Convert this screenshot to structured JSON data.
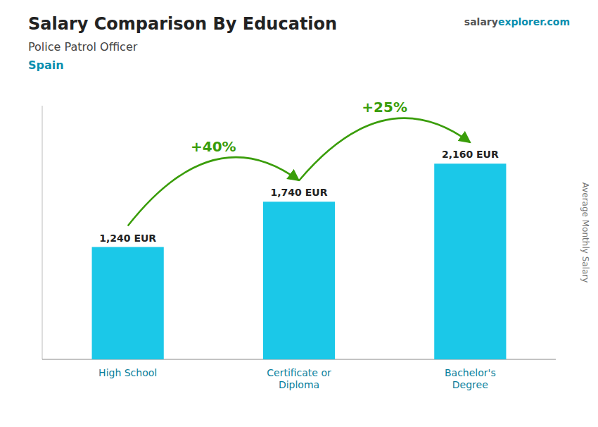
{
  "chart_data": {
    "type": "bar",
    "title": "Salary Comparison By Education",
    "subtitle": "Police Patrol Officer",
    "country": "Spain",
    "categories": [
      "High School",
      "Certificate or\nDiploma",
      "Bachelor's\nDegree"
    ],
    "values": [
      1240,
      1740,
      2160
    ],
    "value_labels": [
      "1,240 EUR",
      "1,740 EUR",
      "2,160 EUR"
    ],
    "data_labels": true,
    "color": "#1bc8e8",
    "annotations": [
      "+40%",
      "+25%"
    ],
    "watermark": [
      "salary",
      "explorer.com"
    ],
    "y_label": "Average Monthly Salary",
    "ylim": [
      0,
      2800
    ],
    "tick_labels": "x",
    "grid": false
  }
}
